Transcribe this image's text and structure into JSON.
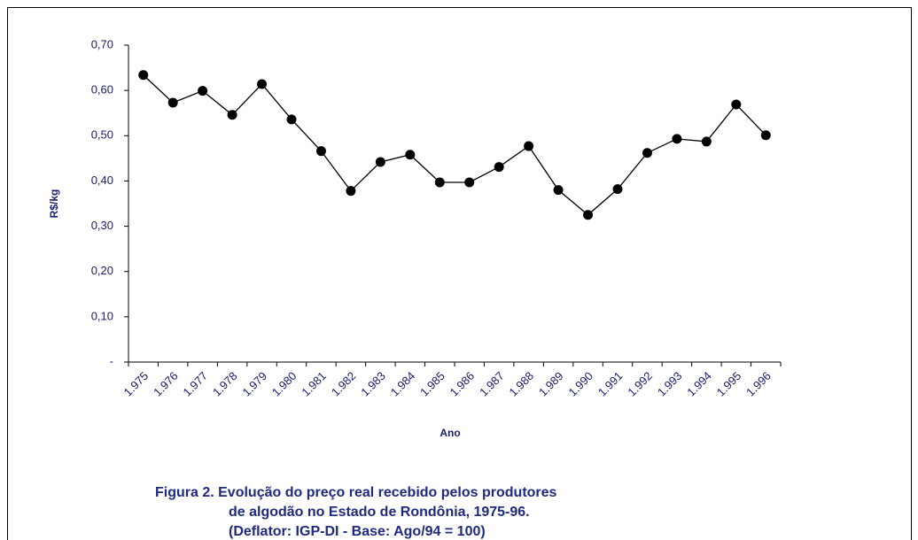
{
  "chart_data": {
    "type": "line",
    "caption": [
      "Figura 2. Evolução do preço real recebido pelos produtores",
      "de algodão no Estado de Rondônia, 1975-96.",
      "(Deflator: IGP-DI - Base: Ago/94 = 100)"
    ],
    "x_label": "Ano",
    "y_label": "R$/kg",
    "categories": [
      "1.975",
      "1.976",
      "1.977",
      "1.978",
      "1.979",
      "1.980",
      "1.981",
      "1.982",
      "1.983",
      "1.984",
      "1.985",
      "1.986",
      "1.987",
      "1.988",
      "1.989",
      "1.990",
      "1.991",
      "1.992",
      "1.993",
      "1.994",
      "1.995",
      "1.996"
    ],
    "values": [
      0.634,
      0.573,
      0.599,
      0.546,
      0.614,
      0.536,
      0.466,
      0.378,
      0.442,
      0.458,
      0.397,
      0.397,
      0.431,
      0.477,
      0.38,
      0.325,
      0.382,
      0.462,
      0.493,
      0.487,
      0.569,
      0.501
    ],
    "color": "#000000",
    "ylim": [
      0,
      0.7
    ],
    "yticks": [
      {
        "value": 0,
        "label": "-"
      },
      {
        "value": 0.1,
        "label": "0,10"
      },
      {
        "value": 0.2,
        "label": "0,20"
      },
      {
        "value": 0.3,
        "label": "0,30"
      },
      {
        "value": 0.4,
        "label": "0,40"
      },
      {
        "value": 0.5,
        "label": "0,50"
      },
      {
        "value": 0.6,
        "label": "0,60"
      },
      {
        "value": 0.7,
        "label": "0,70"
      }
    ],
    "grid": false
  }
}
